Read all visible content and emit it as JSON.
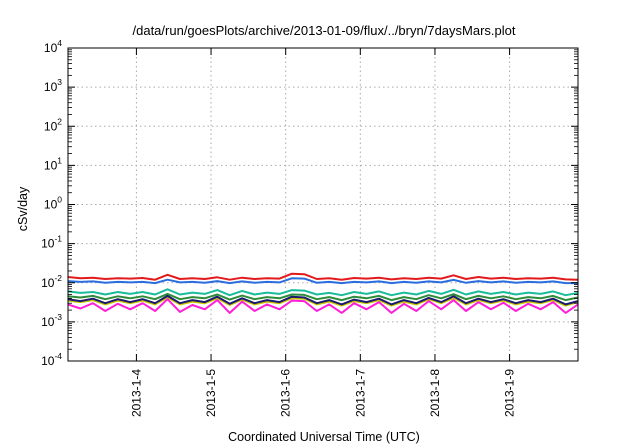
{
  "chart_data": {
    "type": "line",
    "title": "/data/run/goesPlots/archive/2013-01-09/flux/../bryn/7daysMars.plot",
    "xlabel": "Coordinated Universal Time (UTC)",
    "ylabel": "cSv/day",
    "y_scale": "log",
    "ylim": [
      0.0001,
      10000
    ],
    "xlim": [
      "2013-01-03 02:00",
      "2013-01-09 22:00"
    ],
    "grid": true,
    "legend": "none",
    "x_ticks": [
      "2013-1-4",
      "2013-1-5",
      "2013-1-6",
      "2013-1-7",
      "2013-1-8",
      "2013-1-9"
    ],
    "x_tick_dates": [
      "2013-01-04 00:00",
      "2013-01-05 00:00",
      "2013-01-06 00:00",
      "2013-01-07 00:00",
      "2013-01-08 00:00",
      "2013-01-09 00:00"
    ],
    "y_ticks": [
      {
        "base": "10",
        "exp": "4",
        "value": 10000
      },
      {
        "base": "10",
        "exp": "3",
        "value": 1000
      },
      {
        "base": "10",
        "exp": "2",
        "value": 100
      },
      {
        "base": "10",
        "exp": "1",
        "value": 10
      },
      {
        "base": "10",
        "exp": "0",
        "value": 1
      },
      {
        "base": "10",
        "exp": "-1",
        "value": 0.1
      },
      {
        "base": "10",
        "exp": "-2",
        "value": 0.01
      },
      {
        "base": "10",
        "exp": "-3",
        "value": 0.001
      },
      {
        "base": "10",
        "exp": "-4",
        "value": 0.0001
      }
    ],
    "x": [
      "2013-01-03 02:00",
      "2013-01-03 06:00",
      "2013-01-03 10:00",
      "2013-01-03 14:00",
      "2013-01-03 18:00",
      "2013-01-03 22:00",
      "2013-01-04 02:00",
      "2013-01-04 06:00",
      "2013-01-04 10:00",
      "2013-01-04 14:00",
      "2013-01-04 18:00",
      "2013-01-04 22:00",
      "2013-01-05 02:00",
      "2013-01-05 06:00",
      "2013-01-05 10:00",
      "2013-01-05 14:00",
      "2013-01-05 18:00",
      "2013-01-05 22:00",
      "2013-01-06 02:00",
      "2013-01-06 06:00",
      "2013-01-06 10:00",
      "2013-01-06 14:00",
      "2013-01-06 18:00",
      "2013-01-06 22:00",
      "2013-01-07 02:00",
      "2013-01-07 06:00",
      "2013-01-07 10:00",
      "2013-01-07 14:00",
      "2013-01-07 18:00",
      "2013-01-07 22:00",
      "2013-01-08 02:00",
      "2013-01-08 06:00",
      "2013-01-08 10:00",
      "2013-01-08 14:00",
      "2013-01-08 18:00",
      "2013-01-08 22:00",
      "2013-01-09 02:00",
      "2013-01-09 06:00",
      "2013-01-09 10:00",
      "2013-01-09 14:00",
      "2013-01-09 18:00",
      "2013-01-09 22:00"
    ],
    "series": [
      {
        "color": "#e31a1c",
        "values": [
          0.014,
          0.013,
          0.0135,
          0.0125,
          0.013,
          0.0128,
          0.0132,
          0.012,
          0.016,
          0.0125,
          0.013,
          0.0125,
          0.0138,
          0.012,
          0.0135,
          0.0125,
          0.013,
          0.0128,
          0.017,
          0.0165,
          0.0125,
          0.013,
          0.012,
          0.0132,
          0.0128,
          0.0135,
          0.0122,
          0.013,
          0.0125,
          0.0135,
          0.0128,
          0.0155,
          0.0125,
          0.014,
          0.0128,
          0.0135,
          0.0125,
          0.013,
          0.0128,
          0.0135,
          0.0122,
          0.012
        ]
      },
      {
        "color": "#2b6ddc",
        "values": [
          0.011,
          0.0105,
          0.0108,
          0.01,
          0.0105,
          0.0102,
          0.0105,
          0.0098,
          0.012,
          0.0102,
          0.0105,
          0.01,
          0.011,
          0.0098,
          0.0108,
          0.01,
          0.0105,
          0.0102,
          0.013,
          0.0128,
          0.01,
          0.0105,
          0.0098,
          0.0105,
          0.0102,
          0.0108,
          0.0098,
          0.0105,
          0.01,
          0.0108,
          0.0102,
          0.0118,
          0.01,
          0.011,
          0.0102,
          0.0108,
          0.01,
          0.0105,
          0.0102,
          0.0108,
          0.0098,
          0.0098
        ]
      },
      {
        "color": "#1abc9c",
        "values": [
          0.006,
          0.0055,
          0.0058,
          0.005,
          0.0058,
          0.0052,
          0.0058,
          0.005,
          0.0068,
          0.005,
          0.0056,
          0.0052,
          0.0065,
          0.0048,
          0.0062,
          0.005,
          0.0056,
          0.0052,
          0.0065,
          0.0063,
          0.005,
          0.0055,
          0.0048,
          0.0058,
          0.0052,
          0.006,
          0.0048,
          0.0056,
          0.005,
          0.0062,
          0.0052,
          0.0066,
          0.005,
          0.006,
          0.0052,
          0.0058,
          0.005,
          0.0056,
          0.0052,
          0.006,
          0.0048,
          0.0055
        ]
      },
      {
        "color": "#2e8b3a",
        "values": [
          0.0045,
          0.0042,
          0.0046,
          0.0038,
          0.0045,
          0.004,
          0.0045,
          0.0038,
          0.0052,
          0.0038,
          0.0043,
          0.004,
          0.005,
          0.0037,
          0.0047,
          0.0038,
          0.0043,
          0.004,
          0.005,
          0.0049,
          0.0038,
          0.0043,
          0.0036,
          0.0044,
          0.004,
          0.0046,
          0.0036,
          0.0043,
          0.0038,
          0.0048,
          0.004,
          0.0051,
          0.0038,
          0.0046,
          0.004,
          0.0045,
          0.0038,
          0.0043,
          0.004,
          0.0046,
          0.0036,
          0.0042
        ]
      },
      {
        "color": "#c9c700",
        "values": [
          0.0035,
          0.0032,
          0.0036,
          0.0028,
          0.0035,
          0.003,
          0.0035,
          0.0028,
          0.0042,
          0.0028,
          0.0033,
          0.003,
          0.004,
          0.0027,
          0.0037,
          0.0028,
          0.0033,
          0.003,
          0.004,
          0.0039,
          0.0028,
          0.0033,
          0.0026,
          0.0034,
          0.003,
          0.0036,
          0.0026,
          0.0033,
          0.0028,
          0.0038,
          0.003,
          0.0041,
          0.0028,
          0.0036,
          0.003,
          0.0035,
          0.0028,
          0.0033,
          0.003,
          0.0036,
          0.0026,
          0.0032
        ]
      },
      {
        "color": "#1a1a6e",
        "values": [
          0.0038,
          0.0034,
          0.0039,
          0.003,
          0.0038,
          0.0032,
          0.0038,
          0.003,
          0.0046,
          0.003,
          0.0036,
          0.0032,
          0.0044,
          0.0029,
          0.004,
          0.003,
          0.0036,
          0.0032,
          0.0044,
          0.0042,
          0.003,
          0.0036,
          0.0028,
          0.0037,
          0.0032,
          0.0039,
          0.0028,
          0.0036,
          0.003,
          0.0041,
          0.0032,
          0.0045,
          0.003,
          0.0039,
          0.0032,
          0.0038,
          0.003,
          0.0036,
          0.0032,
          0.0039,
          0.0028,
          0.0034
        ]
      },
      {
        "color": "#ff1fd8",
        "values": [
          0.0028,
          0.0022,
          0.003,
          0.0019,
          0.0029,
          0.0021,
          0.003,
          0.0019,
          0.0038,
          0.0018,
          0.0027,
          0.0021,
          0.0036,
          0.0017,
          0.0033,
          0.0019,
          0.0028,
          0.0021,
          0.0035,
          0.0034,
          0.0019,
          0.0028,
          0.0017,
          0.003,
          0.0021,
          0.0032,
          0.0017,
          0.0029,
          0.0019,
          0.0034,
          0.0021,
          0.0036,
          0.0019,
          0.0032,
          0.0021,
          0.0031,
          0.0019,
          0.0029,
          0.0021,
          0.0032,
          0.0017,
          0.0028
        ]
      }
    ]
  }
}
